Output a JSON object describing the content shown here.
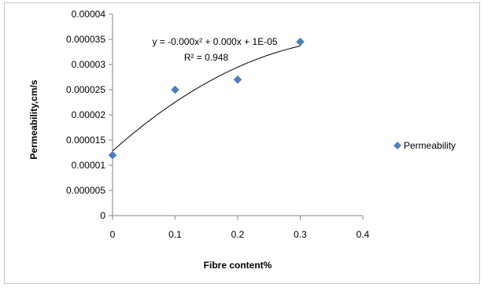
{
  "chart_data": {
    "type": "scatter",
    "xlabel": "Fibre content%",
    "ylabel": "Permeability,cm/s",
    "xlim": [
      0,
      0.4
    ],
    "ylim": [
      0,
      4e-05
    ],
    "x_ticks": [
      "0",
      "0.1",
      "0.2",
      "0.3",
      "0.4"
    ],
    "y_ticks": [
      "0",
      "0.000005",
      "0.00001",
      "0.000015",
      "0.00002",
      "0.000025",
      "0.00003",
      "0.000035",
      "0.00004"
    ],
    "grid": false,
    "legend_position": "right",
    "series": [
      {
        "name": "Permeability",
        "color": "#4f81bd",
        "marker": "diamond",
        "x": [
          0,
          0.1,
          0.2,
          0.3
        ],
        "y": [
          1.2e-05,
          2.5e-05,
          2.7e-05,
          3.45e-05
        ]
      }
    ],
    "trendline": {
      "type": "polynomial-2",
      "color": "#000000",
      "equation": "y = -0.000x² + 0.000x + 1E-05",
      "r_squared": "R² = 0.948"
    }
  }
}
